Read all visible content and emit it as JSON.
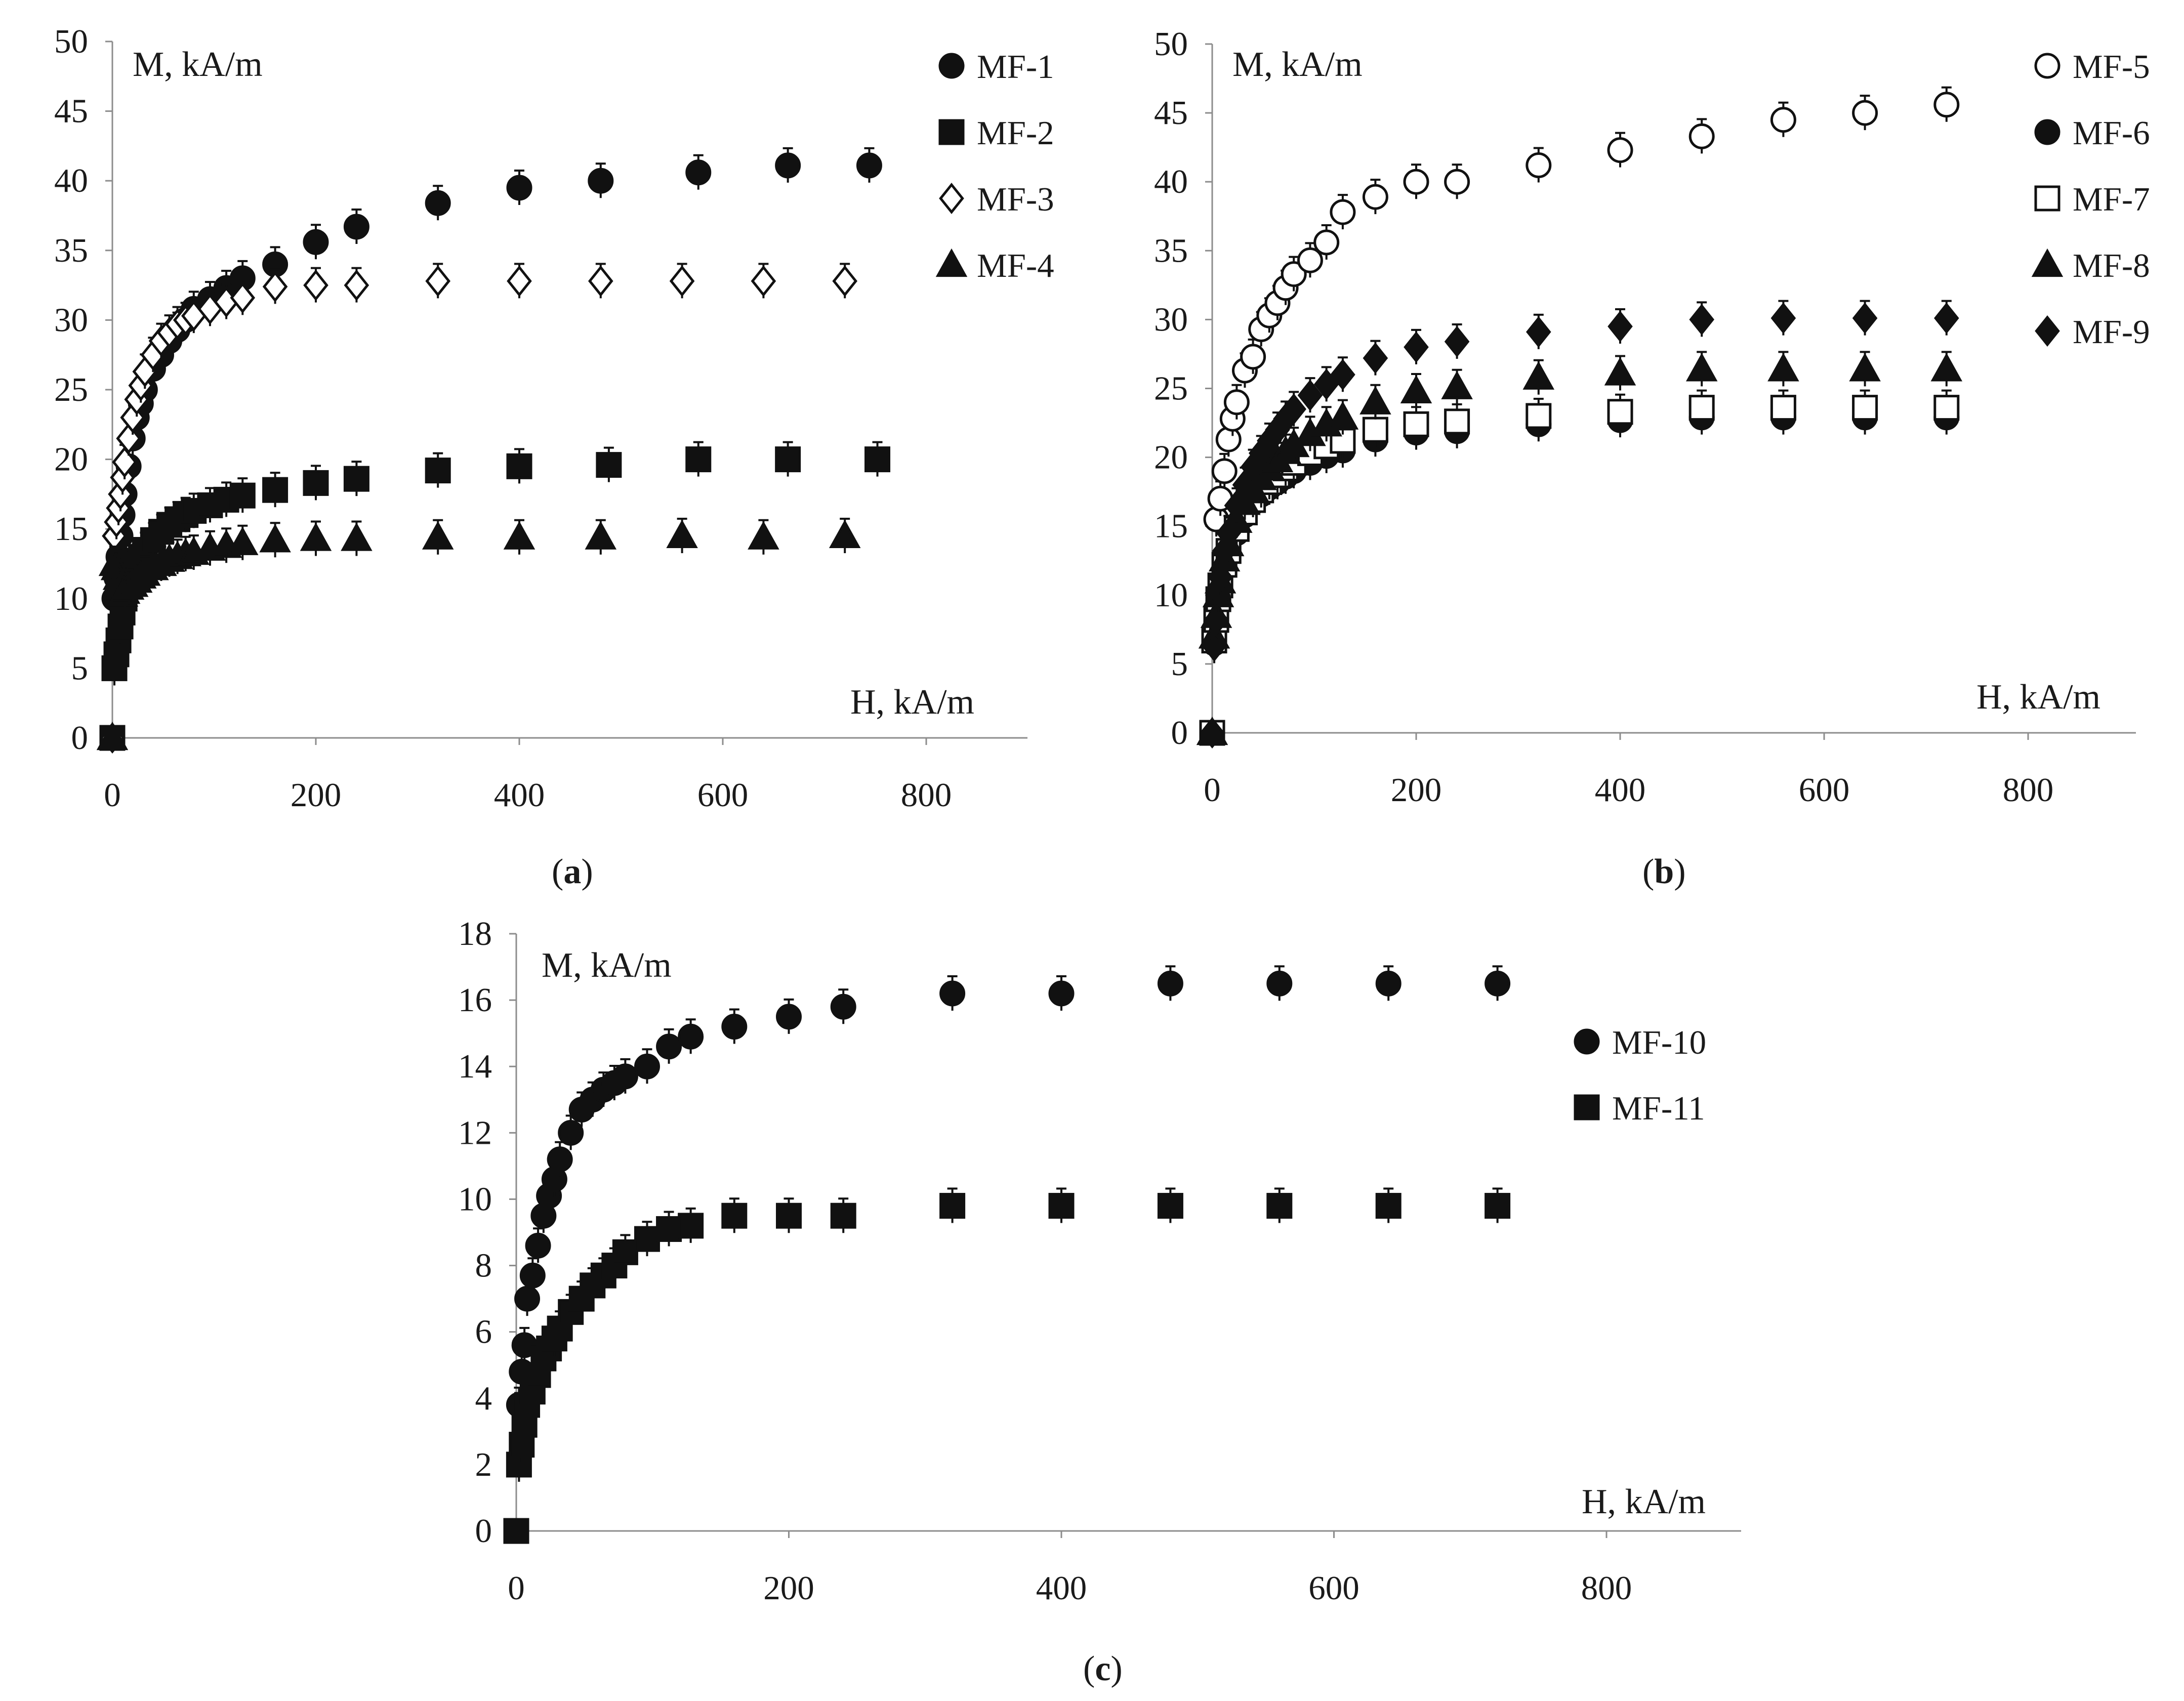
{
  "chart_data": [
    {
      "id": "a",
      "type": "scatter",
      "caption": "a",
      "xlabel": "H, kA/m",
      "ylabel": "M, kA/m",
      "xlim": [
        0,
        900
      ],
      "ylim": [
        0,
        50
      ],
      "xticks": [
        "0",
        "200",
        "400",
        "600",
        "800"
      ],
      "yticks": [
        "0",
        "5",
        "10",
        "15",
        "20",
        "25",
        "30",
        "35",
        "40",
        "45",
        "50"
      ],
      "legend": "top-right",
      "series": [
        {
          "name": "MF-1",
          "marker": "circle-filled",
          "x": [
            0,
            2,
            4,
            6,
            8,
            10,
            12,
            16,
            20,
            24,
            28,
            32,
            40,
            48,
            56,
            64,
            72,
            80,
            96,
            112,
            128,
            160,
            200,
            240,
            320,
            400,
            480,
            576,
            664,
            744
          ],
          "y": [
            0,
            10,
            11.5,
            13,
            14.5,
            16,
            17.5,
            19.5,
            21.5,
            23,
            24,
            25,
            26.5,
            27.5,
            28.5,
            29.3,
            30,
            30.8,
            31.5,
            32.3,
            33,
            34,
            35.6,
            36.7,
            38.4,
            39.5,
            40,
            40.6,
            41.1,
            41.1
          ]
        },
        {
          "name": "MF-2",
          "marker": "square-filled",
          "x": [
            0,
            2,
            4,
            6,
            8,
            10,
            12,
            16,
            20,
            24,
            28,
            32,
            40,
            48,
            56,
            64,
            72,
            80,
            96,
            112,
            128,
            160,
            200,
            240,
            320,
            400,
            488,
            576,
            664,
            752
          ],
          "y": [
            0,
            5,
            6,
            7,
            8,
            9,
            10,
            11,
            11.8,
            12.4,
            13,
            13.5,
            14.2,
            14.8,
            15.3,
            15.7,
            16,
            16.3,
            16.7,
            17.1,
            17.4,
            17.8,
            18.3,
            18.6,
            19.2,
            19.5,
            19.6,
            20,
            20,
            20
          ]
        },
        {
          "name": "MF-3",
          "marker": "diamond-open",
          "x": [
            0,
            2,
            4,
            6,
            8,
            10,
            12,
            16,
            20,
            24,
            28,
            32,
            40,
            48,
            56,
            64,
            72,
            80,
            96,
            112,
            128,
            160,
            200,
            240,
            320,
            400,
            480,
            560,
            640,
            720
          ],
          "y": [
            0,
            14.5,
            15.5,
            16.5,
            17.5,
            18.7,
            19.8,
            21.5,
            23,
            24.3,
            25.3,
            26.3,
            27.5,
            28.5,
            29.1,
            29.7,
            30,
            30.3,
            30.8,
            31.3,
            31.6,
            32.4,
            32.5,
            32.5,
            32.8,
            32.8,
            32.8,
            32.8,
            32.8,
            32.8
          ]
        },
        {
          "name": "MF-4",
          "marker": "triangle-filled",
          "x": [
            0,
            2,
            4,
            6,
            8,
            10,
            12,
            16,
            20,
            24,
            28,
            32,
            40,
            48,
            56,
            64,
            72,
            80,
            96,
            112,
            128,
            160,
            200,
            240,
            320,
            400,
            480,
            560,
            640,
            720
          ],
          "y": [
            0,
            12.5,
            12.2,
            11.5,
            10.8,
            10.3,
            10.5,
            10.8,
            11,
            11.3,
            11.6,
            11.8,
            12.2,
            12.5,
            12.8,
            13,
            13.2,
            13.3,
            13.6,
            13.8,
            14,
            14.2,
            14.3,
            14.3,
            14.4,
            14.4,
            14.4,
            14.5,
            14.4,
            14.5
          ]
        }
      ]
    },
    {
      "id": "b",
      "type": "scatter",
      "caption": "b",
      "xlabel": "H, kA/m",
      "ylabel": "M, kA/m",
      "xlim": [
        0,
        900
      ],
      "ylim": [
        0,
        50
      ],
      "xticks": [
        "0",
        "200",
        "400",
        "600",
        "800"
      ],
      "yticks": [
        "0",
        "5",
        "10",
        "15",
        "20",
        "25",
        "30",
        "35",
        "40",
        "45",
        "50"
      ],
      "legend": "top-right",
      "series": [
        {
          "name": "MF-5",
          "marker": "circle-open",
          "x": [
            0,
            4,
            8,
            12,
            16,
            20,
            24,
            32,
            40,
            48,
            56,
            64,
            72,
            80,
            96,
            112,
            128,
            160,
            200,
            240,
            320,
            400,
            480,
            560,
            640,
            720
          ],
          "y": [
            0,
            15.5,
            17,
            19,
            21.3,
            22.8,
            24,
            26.3,
            27.3,
            29.3,
            30.3,
            31.2,
            32.3,
            33.3,
            34.3,
            35.6,
            37.8,
            38.9,
            40,
            40,
            41.2,
            42.3,
            43.3,
            44.5,
            45,
            45.6
          ],
          "x_note": "",
          "y_tail": []
        },
        {
          "name": "MF-6",
          "marker": "circle-filled",
          "x": [
            0,
            2,
            4,
            6,
            8,
            12,
            16,
            24,
            32,
            40,
            48,
            56,
            64,
            72,
            80,
            96,
            112,
            128,
            160,
            200,
            240,
            320,
            400,
            480,
            560,
            640,
            720
          ],
          "y": [
            0,
            6.5,
            8,
            9.5,
            10.5,
            12,
            13,
            14.5,
            15.8,
            16.7,
            17.3,
            17.8,
            18.2,
            18.6,
            19,
            19.6,
            20.1,
            20.5,
            21.3,
            21.8,
            21.9,
            22.4,
            22.7,
            22.9,
            22.9,
            22.9,
            22.9
          ]
        },
        {
          "name": "MF-7",
          "marker": "square-open",
          "x": [
            0,
            2,
            4,
            6,
            8,
            12,
            16,
            24,
            32,
            40,
            48,
            56,
            64,
            72,
            80,
            96,
            112,
            128,
            160,
            200,
            240,
            320,
            400,
            480,
            560,
            640,
            720
          ],
          "y": [
            0,
            6.7,
            8.2,
            9.7,
            10.7,
            12.2,
            13.2,
            14.8,
            16,
            16.9,
            17.6,
            18.2,
            18.7,
            19.2,
            19.6,
            20.3,
            20.8,
            21.2,
            22,
            22.4,
            22.6,
            23,
            23.3,
            23.6,
            23.6,
            23.6,
            23.6
          ]
        },
        {
          "name": "MF-8",
          "marker": "triangle-filled",
          "x": [
            0,
            2,
            4,
            6,
            8,
            12,
            16,
            24,
            32,
            40,
            48,
            56,
            64,
            72,
            80,
            96,
            112,
            128,
            160,
            200,
            240,
            320,
            400,
            480,
            560,
            640,
            720
          ],
          "y": [
            0,
            7,
            8.5,
            10,
            11,
            12.6,
            13.7,
            15.4,
            16.7,
            17.7,
            18.5,
            19.2,
            19.8,
            20.4,
            20.9,
            21.7,
            22.4,
            22.9,
            24,
            24.8,
            25.1,
            25.8,
            26.1,
            26.4,
            26.4,
            26.4,
            26.4
          ]
        },
        {
          "name": "MF-9",
          "marker": "diamond-filled",
          "x": [
            0,
            2,
            4,
            6,
            8,
            12,
            16,
            24,
            32,
            40,
            48,
            56,
            64,
            72,
            80,
            96,
            112,
            128,
            160,
            200,
            240,
            320,
            400,
            480,
            560,
            640,
            720
          ],
          "y": [
            0,
            6.3,
            8.2,
            10,
            11.3,
            13.2,
            14.5,
            16.5,
            18,
            19.3,
            20.3,
            21.2,
            22,
            22.8,
            23.5,
            24.5,
            25.3,
            26,
            27.2,
            28,
            28.4,
            29.1,
            29.5,
            30,
            30.1,
            30.1,
            30.1
          ]
        }
      ]
    },
    {
      "id": "c",
      "type": "scatter",
      "caption": "c",
      "xlabel": "H, kA/m",
      "ylabel": "M, kA/m",
      "xlim": [
        0,
        900
      ],
      "ylim": [
        0,
        18
      ],
      "xticks": [
        "0",
        "200",
        "400",
        "600",
        "800"
      ],
      "yticks": [
        "0",
        "2",
        "4",
        "6",
        "8",
        "10",
        "12",
        "14",
        "16",
        "18"
      ],
      "legend": "right",
      "series": [
        {
          "name": "MF-10",
          "marker": "circle-filled",
          "x": [
            0,
            2,
            4,
            6,
            8,
            12,
            16,
            20,
            24,
            28,
            32,
            40,
            48,
            56,
            64,
            72,
            80,
            96,
            112,
            128,
            160,
            200,
            240,
            320,
            400,
            480,
            560,
            640,
            720
          ],
          "y": [
            0,
            3.8,
            4.8,
            5.6,
            7,
            7.7,
            8.6,
            9.5,
            10.1,
            10.6,
            11.2,
            12,
            12.7,
            13,
            13.3,
            13.5,
            13.7,
            14,
            14.6,
            14.9,
            15.2,
            15.5,
            15.8,
            16.2,
            16.2,
            16.5,
            16.5,
            16.5,
            16.5
          ]
        },
        {
          "name": "MF-11",
          "marker": "square-filled",
          "x": [
            0,
            2,
            4,
            6,
            8,
            12,
            16,
            20,
            24,
            28,
            32,
            40,
            48,
            56,
            64,
            72,
            80,
            96,
            112,
            128,
            160,
            200,
            240,
            320,
            400,
            480,
            560,
            640,
            720
          ],
          "y": [
            0,
            2,
            2.6,
            3.2,
            3.8,
            4.2,
            4.7,
            5.2,
            5.5,
            5.8,
            6.1,
            6.6,
            7,
            7.4,
            7.7,
            8,
            8.4,
            8.8,
            9.1,
            9.2,
            9.5,
            9.5,
            9.5,
            9.8,
            9.8,
            9.8,
            9.8,
            9.8,
            9.8
          ]
        }
      ]
    }
  ]
}
